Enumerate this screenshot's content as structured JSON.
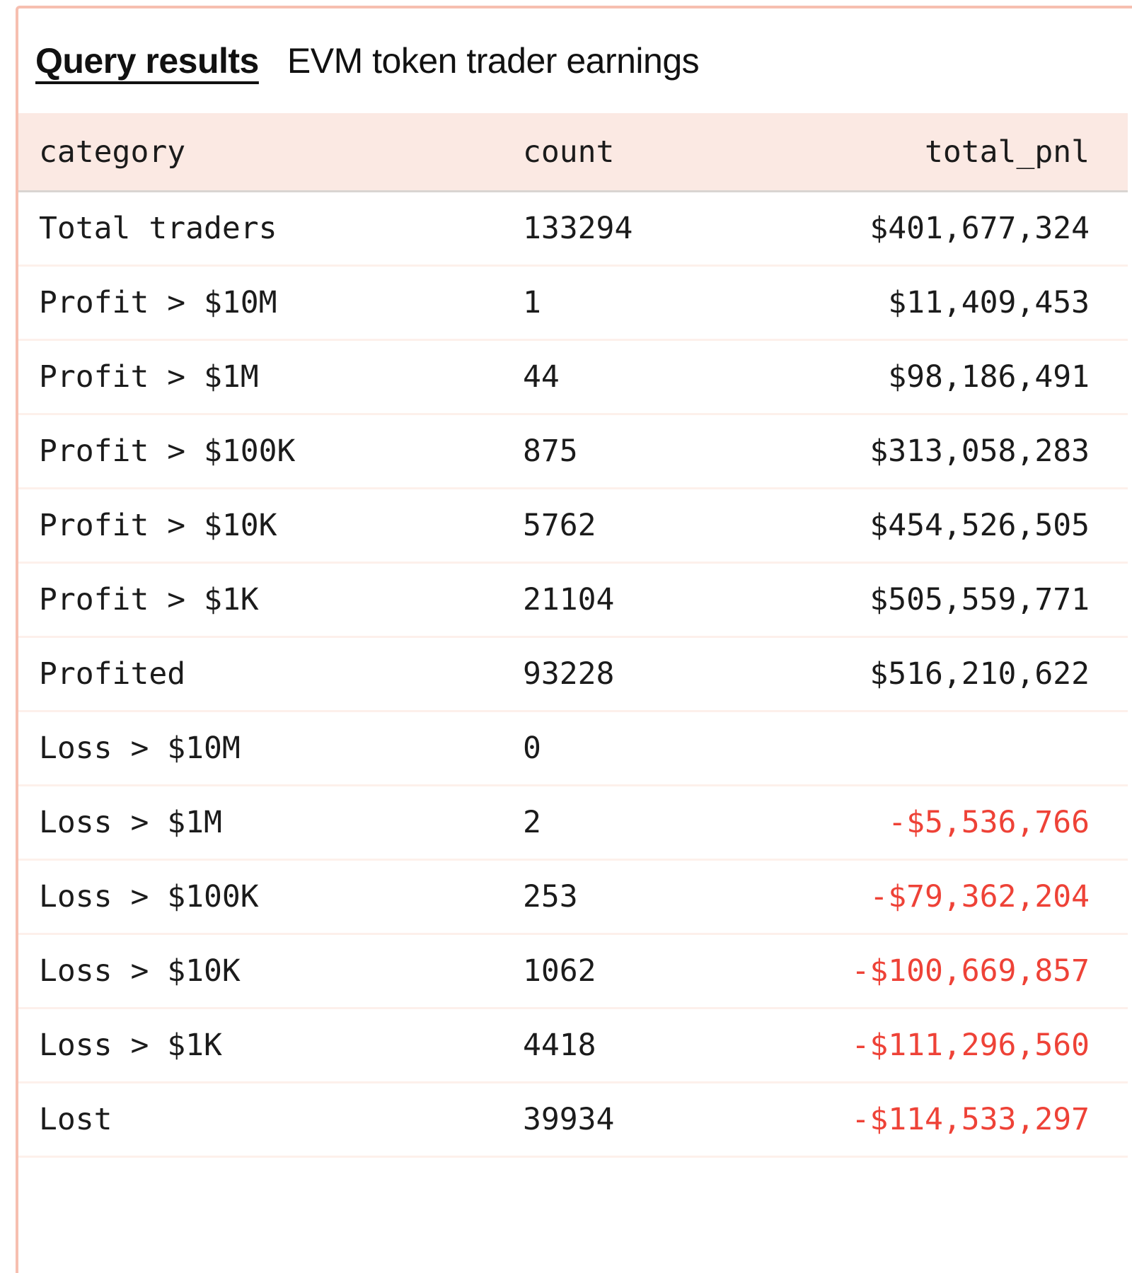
{
  "title": {
    "label": "Query results",
    "subtitle": "EVM token trader earnings"
  },
  "colors": {
    "card_border": "#f6bfb0",
    "header_background": "#fbe9e3",
    "header_divider": "#d9d5d2",
    "row_divider": "#fdf0eb",
    "text": "#1b1b1b",
    "negative_value": "#ee4237"
  },
  "table": {
    "columns": [
      {
        "key": "category",
        "label": "category",
        "align": "left"
      },
      {
        "key": "count",
        "label": "count",
        "align": "left"
      },
      {
        "key": "total_pnl",
        "label": "total_pnl",
        "align": "right"
      }
    ],
    "rows": [
      {
        "category": "Total traders",
        "count": "133294",
        "total_pnl": "$401,677,324",
        "negative": false
      },
      {
        "category": "Profit > $10M",
        "count": "1",
        "total_pnl": "$11,409,453",
        "negative": false
      },
      {
        "category": "Profit > $1M",
        "count": "44",
        "total_pnl": "$98,186,491",
        "negative": false
      },
      {
        "category": "Profit > $100K",
        "count": "875",
        "total_pnl": "$313,058,283",
        "negative": false
      },
      {
        "category": "Profit > $10K",
        "count": "5762",
        "total_pnl": "$454,526,505",
        "negative": false
      },
      {
        "category": "Profit > $1K",
        "count": "21104",
        "total_pnl": "$505,559,771",
        "negative": false
      },
      {
        "category": "Profited",
        "count": "93228",
        "total_pnl": "$516,210,622",
        "negative": false
      },
      {
        "category": "Loss > $10M",
        "count": "0",
        "total_pnl": "",
        "negative": false
      },
      {
        "category": "Loss > $1M",
        "count": "2",
        "total_pnl": "-$5,536,766",
        "negative": true
      },
      {
        "category": "Loss > $100K",
        "count": "253",
        "total_pnl": "-$79,362,204",
        "negative": true
      },
      {
        "category": "Loss > $10K",
        "count": "1062",
        "total_pnl": "-$100,669,857",
        "negative": true
      },
      {
        "category": "Loss > $1K",
        "count": "4418",
        "total_pnl": "-$111,296,560",
        "negative": true
      },
      {
        "category": "Lost",
        "count": "39934",
        "total_pnl": "-$114,533,297",
        "negative": true
      }
    ]
  }
}
